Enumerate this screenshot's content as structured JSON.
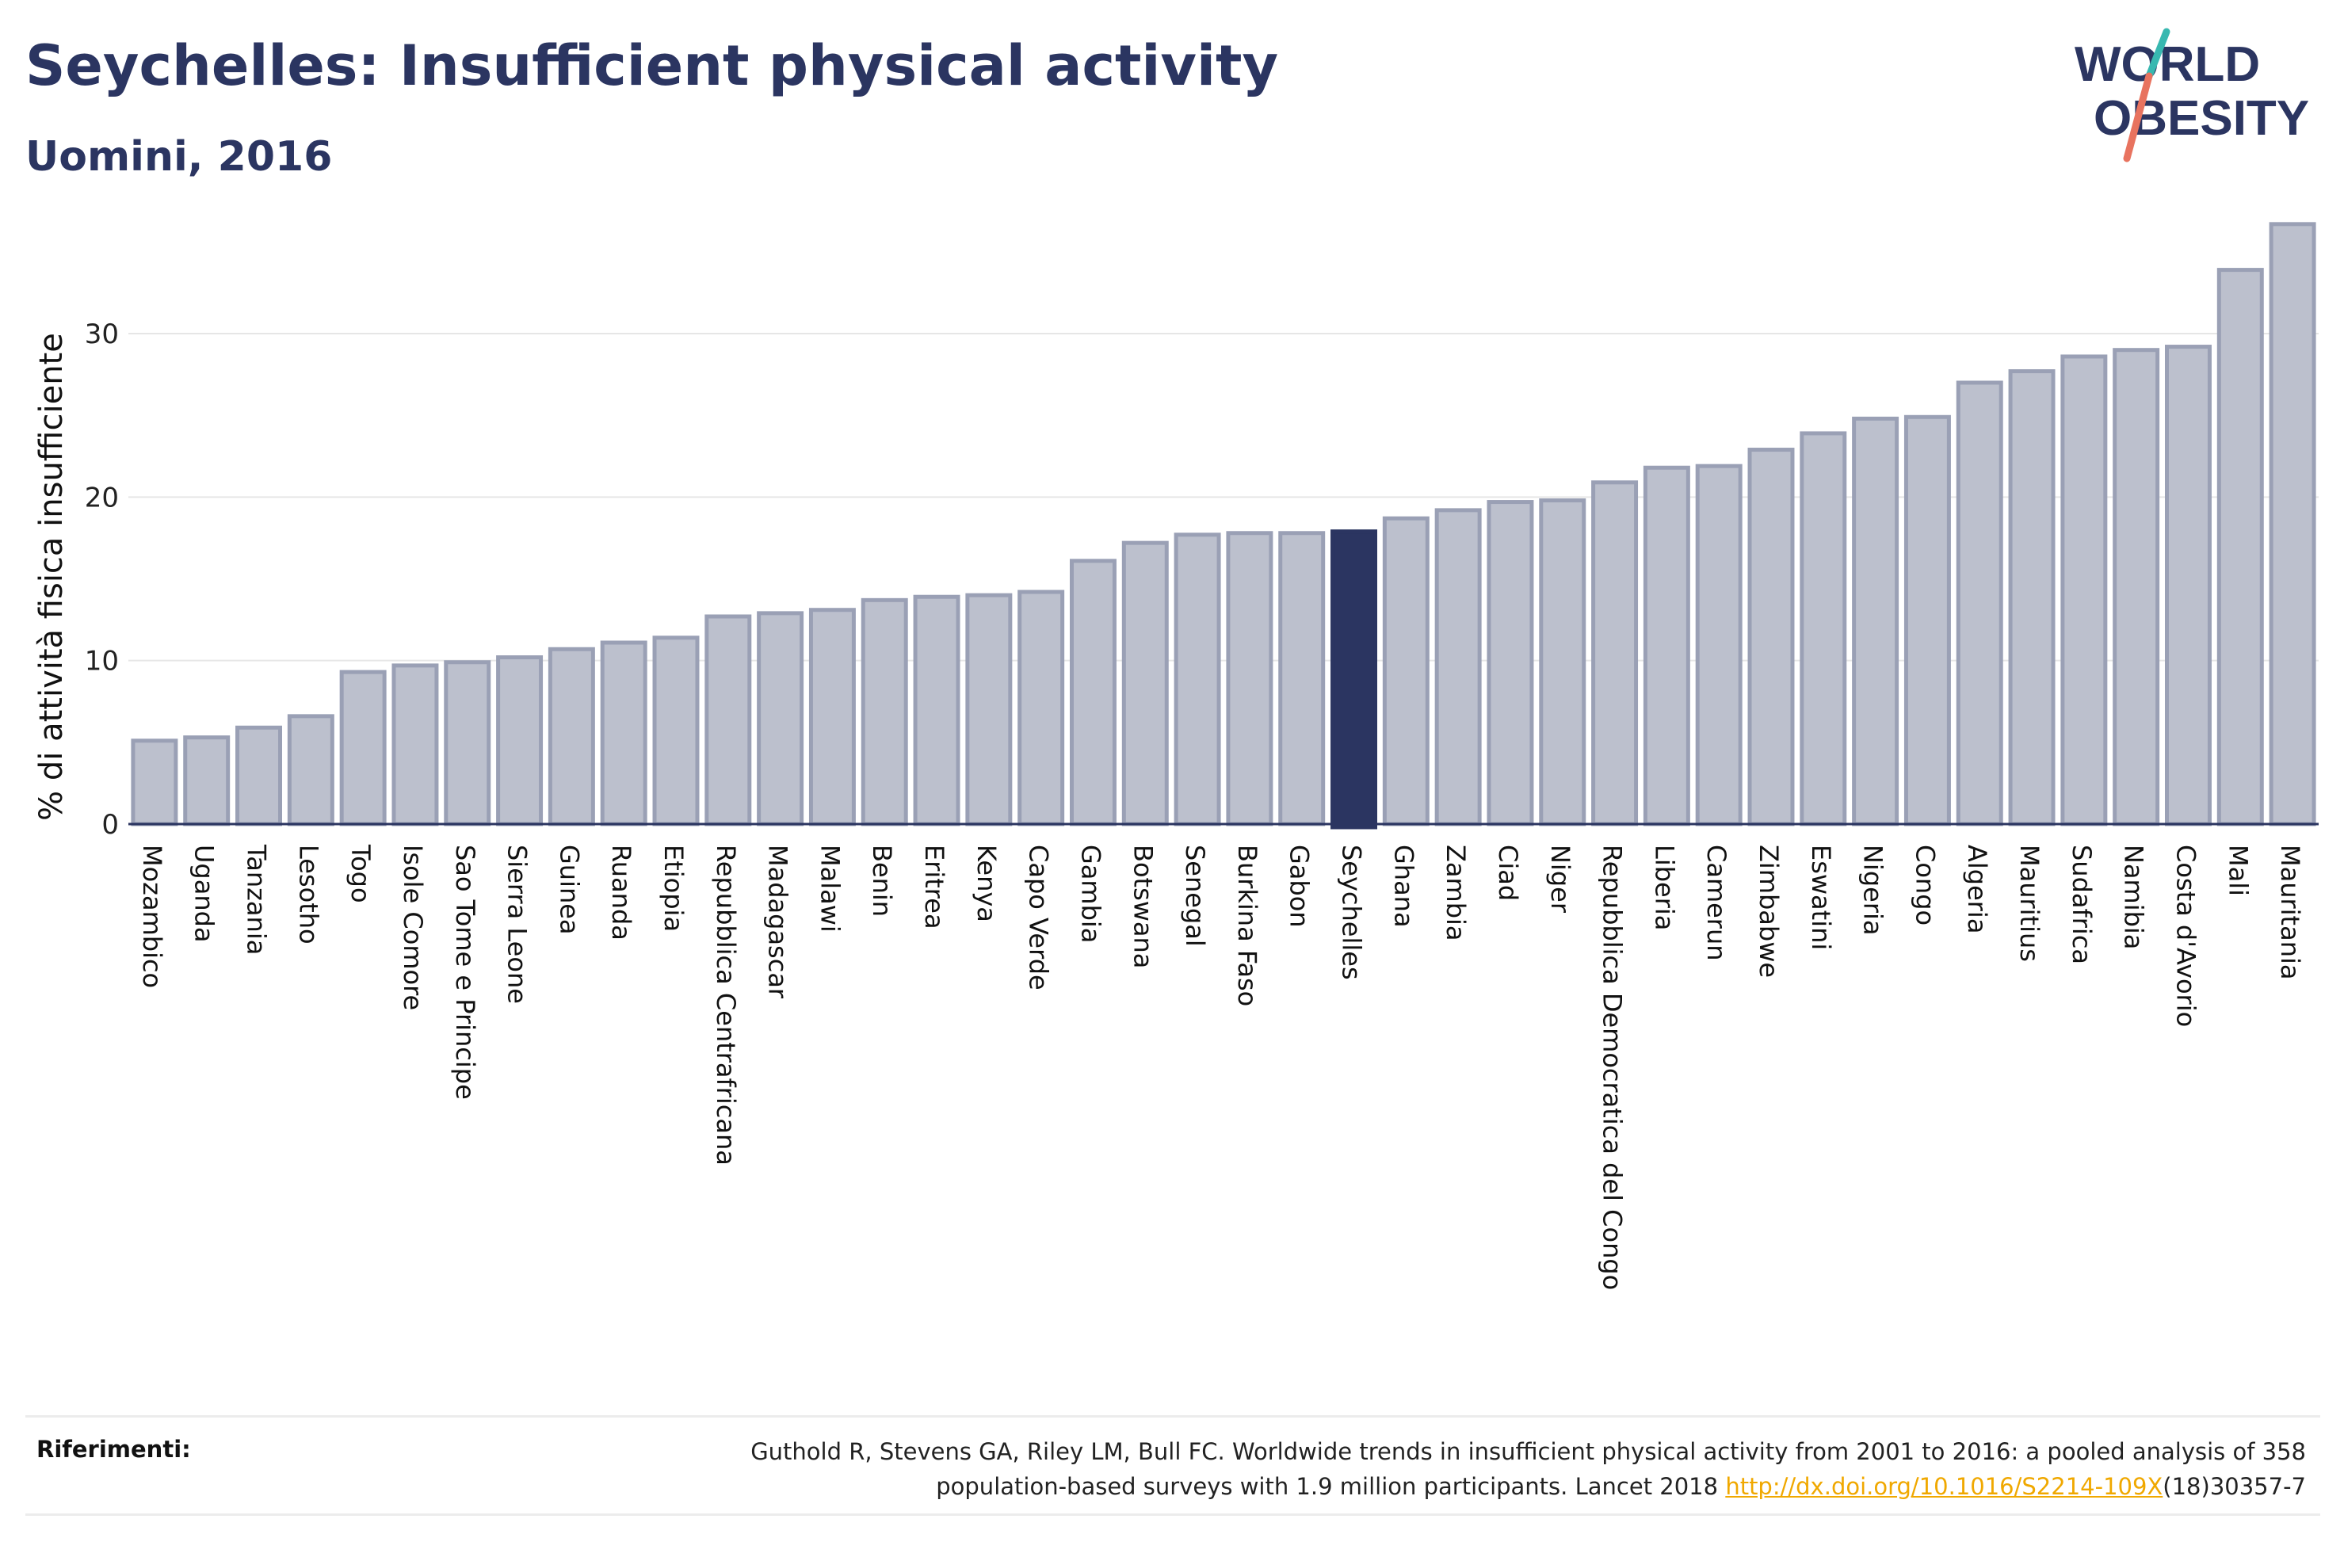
{
  "header": {
    "title": "Seychelles: Insufficient physical activity",
    "subtitle": "Uomini, 2016"
  },
  "logo": {
    "line1": "WORLD",
    "line2": "OBESITY"
  },
  "chart_data": {
    "type": "bar",
    "ylabel": "% di attività fisica insufficiente",
    "xlabel": "",
    "ylim": [
      0,
      38
    ],
    "yticks": [
      0,
      10,
      20,
      30
    ],
    "grid": true,
    "highlight": "Seychelles",
    "colors": {
      "highlight": "#2b3561",
      "bar_fill": "#bcc0cd",
      "bar_stroke": "#9aa0b5",
      "grid": "#e6e6e6",
      "axis": "#2b3561"
    },
    "categories": [
      "Mozambico",
      "Uganda",
      "Tanzania",
      "Lesotho",
      "Togo",
      "Isole Comore",
      "Sao Tome e Principe",
      "Sierra Leone",
      "Guinea",
      "Ruanda",
      "Etiopia",
      "Repubblica Centrafricana",
      "Madagascar",
      "Malawi",
      "Benin",
      "Eritrea",
      "Kenya",
      "Capo Verde",
      "Gambia",
      "Botswana",
      "Senegal",
      "Burkina Faso",
      "Gabon",
      "Seychelles",
      "Ghana",
      "Zambia",
      "Ciad",
      "Niger",
      "Repubblica Democratica del Congo",
      "Liberia",
      "Camerun",
      "Zimbabwe",
      "Eswatini",
      "Nigeria",
      "Congo",
      "Algeria",
      "Mauritius",
      "Sudafrica",
      "Namibia",
      "Costa d'Avorio",
      "Mali",
      "Mauritania"
    ],
    "values": [
      5.1,
      5.3,
      5.9,
      6.6,
      9.3,
      9.7,
      9.9,
      10.2,
      10.7,
      11.1,
      11.4,
      12.7,
      12.9,
      13.1,
      13.7,
      13.9,
      14.0,
      14.2,
      16.1,
      17.2,
      17.7,
      17.8,
      17.8,
      17.9,
      18.7,
      19.2,
      19.7,
      19.8,
      20.9,
      21.8,
      21.9,
      22.9,
      23.9,
      24.8,
      24.9,
      27.0,
      27.7,
      28.6,
      29.0,
      29.2,
      33.9,
      36.7
    ]
  },
  "references": {
    "label": "Riferimenti:",
    "text_line1": "Guthold R, Stevens GA, Riley LM, Bull FC. Worldwide trends in insufficient physical activity from 2001 to 2016: a pooled analysis of 358",
    "text_line2_before": "population-based surveys with 1.9 million participants. Lancet 2018 ",
    "link_text": "http://dx.doi.org/10.1016/S2214-109X",
    "text_line2_after": "(18)30357-7"
  }
}
